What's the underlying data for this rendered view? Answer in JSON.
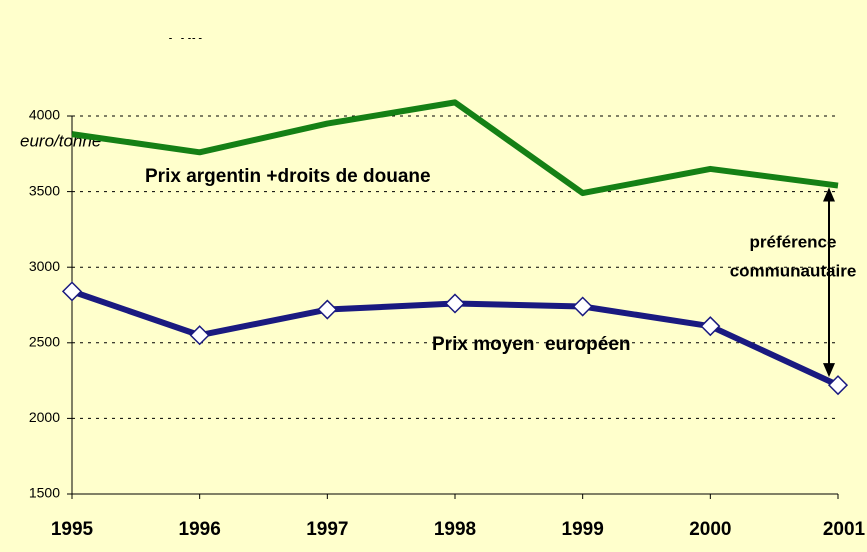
{
  "chart_data": {
    "type": "line",
    "title": "Prix",
    "y_unit_label": "euro/tonne",
    "categories": [
      "1995",
      "1996",
      "1997",
      "1998",
      "1999",
      "2000",
      "2001"
    ],
    "series": [
      {
        "name": "Prix argentin +droits de douane",
        "color": "#158015",
        "values": [
          3880,
          3760,
          3950,
          4090,
          3490,
          3650,
          3540
        ]
      },
      {
        "name": "Prix moyen  européen",
        "color": "#1a1a80",
        "values": [
          2840,
          2550,
          2720,
          2760,
          2740,
          2610,
          2220
        ],
        "marker": "diamond"
      }
    ],
    "annotation": [
      "préférence",
      "communautaire"
    ],
    "ylim": [
      1500,
      4000
    ],
    "yticks": [
      1500,
      2000,
      2500,
      3000,
      3500,
      4000
    ],
    "grid": true
  }
}
